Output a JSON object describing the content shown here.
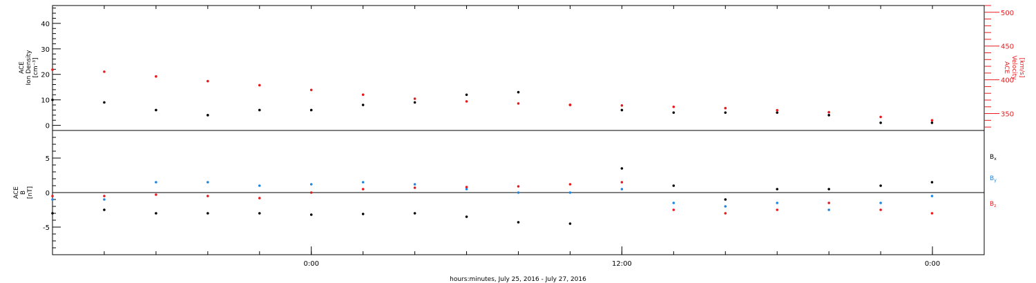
{
  "colors": {
    "black": "#000000",
    "red": "#e8191c",
    "blue": "#1e86e0"
  },
  "x_axis": {
    "label": "hours:minutes, July 25, 2016 - July 27, 2016",
    "start": "2016-07-25 14:00",
    "end": "2016-07-27 02:00",
    "ticks": [
      {
        "time": "2016-07-26 00:00",
        "label": "0:00"
      },
      {
        "time": "2016-07-26 12:00",
        "label": "12:00"
      },
      {
        "time": "2016-07-27 00:00",
        "label": "0:00"
      }
    ]
  },
  "chart_data": [
    {
      "type": "scatter",
      "panel": "top",
      "ylabel_left": [
        "ACE",
        "Ion Density",
        "[cm⁻³]"
      ],
      "ylabel_right": [
        "ACE",
        "Velocity",
        "[km/s]"
      ],
      "ylim_left": [
        -2,
        47
      ],
      "ylim_right": [
        325,
        510
      ],
      "left_ticks": [
        0,
        10,
        20,
        30,
        40
      ],
      "right_ticks": [
        350,
        400,
        450,
        500
      ],
      "grid": false,
      "series": [
        {
          "axis": "left",
          "color": "black",
          "times": [
            "2016-07-25 14:00",
            "2016-07-25 16:00",
            "2016-07-25 18:00",
            "2016-07-25 20:00",
            "2016-07-25 22:00",
            "2016-07-26 00:00",
            "2016-07-26 02:00",
            "2016-07-26 04:00",
            "2016-07-26 06:00",
            "2016-07-26 08:00",
            "2016-07-26 10:00",
            "2016-07-26 12:00",
            "2016-07-26 14:00",
            "2016-07-26 16:00",
            "2016-07-26 18:00",
            "2016-07-26 20:00",
            "2016-07-26 22:00",
            "2016-07-26 23:59"
          ],
          "values": [
            10,
            9,
            6,
            4,
            6,
            6,
            8,
            9,
            12,
            13,
            8,
            6,
            5,
            5,
            5,
            4,
            1,
            1
          ]
        },
        {
          "axis": "right",
          "color": "red",
          "times": [
            "2016-07-25 14:00",
            "2016-07-25 16:00",
            "2016-07-25 18:00",
            "2016-07-25 20:00",
            "2016-07-25 22:00",
            "2016-07-26 00:00",
            "2016-07-26 02:00",
            "2016-07-26 04:00",
            "2016-07-26 06:00",
            "2016-07-26 08:00",
            "2016-07-26 10:00",
            "2016-07-26 12:00",
            "2016-07-26 14:00",
            "2016-07-26 16:00",
            "2016-07-26 18:00",
            "2016-07-26 20:00",
            "2016-07-26 22:00",
            "2016-07-26 23:59"
          ],
          "values": [
            415,
            412,
            405,
            398,
            392,
            385,
            378,
            372,
            368,
            365,
            363,
            362,
            360,
            358,
            355,
            352,
            345,
            340
          ]
        }
      ]
    },
    {
      "type": "scatter",
      "panel": "bottom",
      "ylabel_left": [
        "ACE",
        "B",
        "[nT]"
      ],
      "ylim": [
        -9,
        9
      ],
      "left_ticks": [
        -5,
        0,
        5
      ],
      "zero_line": true,
      "grid": false,
      "legend_position": "right",
      "series": [
        {
          "name": "Bx",
          "color": "black",
          "times": [
            "2016-07-25 14:00",
            "2016-07-25 16:00",
            "2016-07-25 18:00",
            "2016-07-25 20:00",
            "2016-07-25 22:00",
            "2016-07-26 00:00",
            "2016-07-26 02:00",
            "2016-07-26 04:00",
            "2016-07-26 06:00",
            "2016-07-26 08:00",
            "2016-07-26 10:00",
            "2016-07-26 12:00",
            "2016-07-26 14:00",
            "2016-07-26 16:00",
            "2016-07-26 18:00",
            "2016-07-26 20:00",
            "2016-07-26 22:00",
            "2016-07-26 23:59"
          ],
          "values": [
            -3,
            -2.5,
            -3,
            -3,
            -3,
            -3.2,
            -3.1,
            -3,
            -3.5,
            -4.3,
            -4.5,
            3.5,
            1,
            -1,
            0.5,
            0.5,
            1,
            1.5
          ]
        },
        {
          "name": "By",
          "color": "blue",
          "times": [
            "2016-07-25 14:00",
            "2016-07-25 16:00",
            "2016-07-25 18:00",
            "2016-07-25 20:00",
            "2016-07-25 22:00",
            "2016-07-26 00:00",
            "2016-07-26 02:00",
            "2016-07-26 04:00",
            "2016-07-26 06:00",
            "2016-07-26 08:00",
            "2016-07-26 10:00",
            "2016-07-26 12:00",
            "2016-07-26 14:00",
            "2016-07-26 16:00",
            "2016-07-26 18:00",
            "2016-07-26 20:00",
            "2016-07-26 22:00",
            "2016-07-26 23:59"
          ],
          "values": [
            -1,
            -1,
            1.5,
            1.5,
            1,
            1.2,
            1.5,
            1.2,
            0.5,
            0,
            0,
            0.5,
            -1.5,
            -2,
            -1.5,
            -2.5,
            -1.5,
            -0.5
          ]
        },
        {
          "name": "Bz",
          "color": "red",
          "times": [
            "2016-07-25 14:00",
            "2016-07-25 16:00",
            "2016-07-25 18:00",
            "2016-07-25 20:00",
            "2016-07-25 22:00",
            "2016-07-26 00:00",
            "2016-07-26 02:00",
            "2016-07-26 04:00",
            "2016-07-26 06:00",
            "2016-07-26 08:00",
            "2016-07-26 10:00",
            "2016-07-26 12:00",
            "2016-07-26 14:00",
            "2016-07-26 16:00",
            "2016-07-26 18:00",
            "2016-07-26 20:00",
            "2016-07-26 22:00",
            "2016-07-26 23:59"
          ],
          "values": [
            -0.5,
            -0.5,
            -0.3,
            -0.5,
            -0.8,
            0,
            0.5,
            0.7,
            0.8,
            0.9,
            1.2,
            1.5,
            -2.5,
            -3,
            -2.5,
            -1.5,
            -2.5,
            -3
          ]
        }
      ]
    }
  ]
}
